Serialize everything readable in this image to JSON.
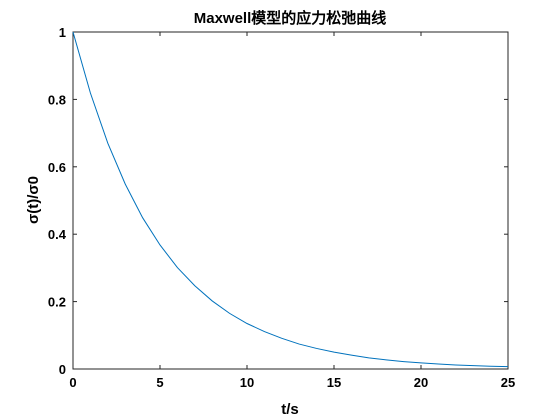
{
  "chart_data": {
    "type": "line",
    "title": "Maxwell模型的应力松弛曲线",
    "xlabel": "t/s",
    "ylabel": "σ(t)/σ0",
    "xlim": [
      0,
      25
    ],
    "ylim": [
      0,
      1
    ],
    "xticks": [
      0,
      5,
      10,
      15,
      20,
      25
    ],
    "yticks": [
      0,
      0.2,
      0.4,
      0.6,
      0.8,
      1
    ],
    "xtick_labels": [
      "0",
      "5",
      "10",
      "15",
      "20",
      "25"
    ],
    "ytick_labels": [
      "0",
      "0.2",
      "0.4",
      "0.6",
      "0.8",
      "1"
    ],
    "grid": false,
    "legend": "none",
    "series": [
      {
        "color": "#0072bd",
        "x": [
          0,
          1,
          2,
          3,
          4,
          5,
          6,
          7,
          8,
          9,
          10,
          11,
          12,
          13,
          14,
          15,
          16,
          17,
          18,
          19,
          20,
          21,
          22,
          23,
          24,
          25
        ],
        "y": [
          1.0,
          0.819,
          0.67,
          0.549,
          0.449,
          0.368,
          0.301,
          0.247,
          0.202,
          0.165,
          0.135,
          0.111,
          0.091,
          0.074,
          0.061,
          0.05,
          0.041,
          0.033,
          0.027,
          0.022,
          0.018,
          0.015,
          0.012,
          0.01,
          0.008,
          0.007
        ]
      }
    ]
  }
}
